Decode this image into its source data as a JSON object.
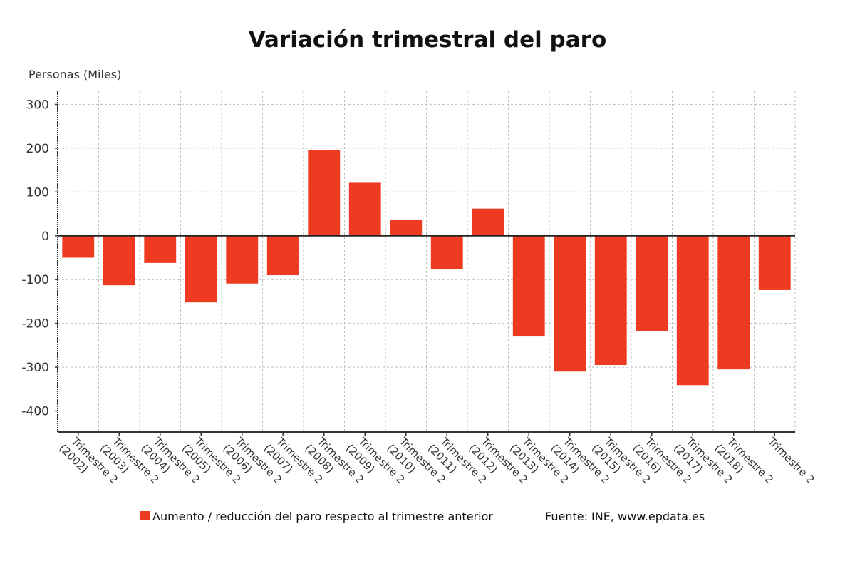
{
  "chart_data": {
    "type": "bar",
    "title": "Variación trimestral del paro",
    "ylabel": "Personas (Miles)",
    "xlabel": "",
    "ylim": [
      -448,
      330
    ],
    "yticks": [
      300,
      200,
      100,
      0,
      -100,
      -200,
      -300,
      -400
    ],
    "grid": true,
    "legend_position": "bottom",
    "categories": [
      "Trimestre 2 (2002)",
      "Trimestre 2 (2003)",
      "Trimestre 2 (2004)",
      "Trimestre 2 (2005)",
      "Trimestre 2 (2006)",
      "Trimestre 2 (2007)",
      "Trimestre 2 (2008)",
      "Trimestre 2 (2009)",
      "Trimestre 2 (2010)",
      "Trimestre 2 (2011)",
      "Trimestre 2 (2012)",
      "Trimestre 2 (2013)",
      "Trimestre 2 (2014)",
      "Trimestre 2 (2015)",
      "Trimestre 2 (2016)",
      "Trimestre 2 (2017)",
      "Trimestre 2 (2018)",
      "Trimestre 2"
    ],
    "series": [
      {
        "name": "Aumento / reducción del paro respecto al trimestre anterior",
        "color": "#ee3a20",
        "values": [
          -50,
          -113,
          -62,
          -152,
          -109,
          -90,
          195,
          121,
          37,
          -77,
          62,
          -230,
          -310,
          -295,
          -217,
          -341,
          -305,
          -124
        ]
      }
    ],
    "source": "Fuente: INE, www.epdata.es"
  }
}
